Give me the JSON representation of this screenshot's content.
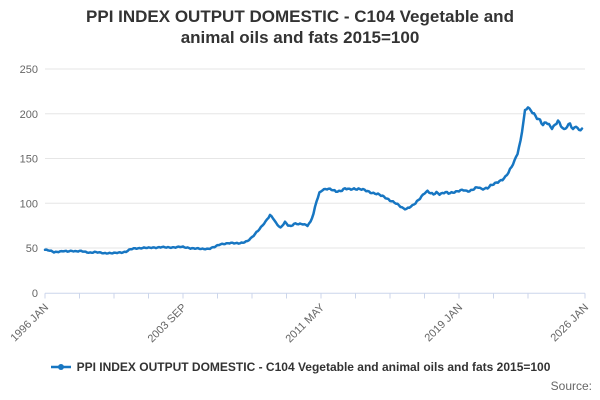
{
  "chart_data": {
    "type": "line",
    "title": "PPI INDEX OUTPUT DOMESTIC - C104 Vegetable and animal oils and fats 2015=100",
    "title_lines": [
      "PPI INDEX OUTPUT DOMESTIC - C104 Vegetable and",
      "animal oils and fats 2015=100"
    ],
    "grid": "horizontal-only",
    "legend_position": "bottom",
    "x_axis": {
      "start_month": "1996-01",
      "end_month": "2026-01",
      "total_months": 360,
      "minor_tick_interval_months": 23,
      "tick_labels": [
        "1996 JAN",
        "2003 SEP",
        "2011 MAY",
        "2019 JAN",
        "2026 JAN"
      ],
      "tick_label_month_offsets": [
        0,
        92,
        184,
        276,
        360
      ]
    },
    "y_axis": {
      "min": 0,
      "max": 250,
      "ticks": [
        0,
        50,
        100,
        150,
        200,
        250
      ]
    },
    "series": [
      {
        "name": "PPI INDEX OUTPUT DOMESTIC - C104 Vegetable and animal oils and fats 2015=100",
        "color": "#1776c2",
        "anchor_points_month_value": [
          [
            0,
            48
          ],
          [
            3,
            47
          ],
          [
            6,
            45.5
          ],
          [
            9,
            46
          ],
          [
            12,
            46.5
          ],
          [
            15,
            46
          ],
          [
            18,
            47
          ],
          [
            21,
            46.5
          ],
          [
            24,
            46.5
          ],
          [
            27,
            45.5
          ],
          [
            30,
            45
          ],
          [
            33,
            45.5
          ],
          [
            36,
            44.8
          ],
          [
            39,
            44.3
          ],
          [
            42,
            44.5
          ],
          [
            45,
            44.2
          ],
          [
            48,
            44.5
          ],
          [
            51,
            45.2
          ],
          [
            54,
            46
          ],
          [
            57,
            48.5
          ],
          [
            60,
            49.5
          ],
          [
            63,
            50
          ],
          [
            66,
            50.3
          ],
          [
            69,
            50
          ],
          [
            72,
            50.5
          ],
          [
            75,
            50.8
          ],
          [
            78,
            51
          ],
          [
            81,
            50.5
          ],
          [
            84,
            50.8
          ],
          [
            87,
            51
          ],
          [
            90,
            51.2
          ],
          [
            92,
            51
          ],
          [
            95,
            50.5
          ],
          [
            98,
            49.8
          ],
          [
            101,
            49.3
          ],
          [
            104,
            49
          ],
          [
            107,
            49.2
          ],
          [
            110,
            49.5
          ],
          [
            113,
            51
          ],
          [
            117,
            54.5
          ],
          [
            120,
            55
          ],
          [
            124,
            55.3
          ],
          [
            128,
            55.5
          ],
          [
            132,
            56
          ],
          [
            135,
            57.5
          ],
          [
            138,
            62
          ],
          [
            141,
            68
          ],
          [
            144,
            73
          ],
          [
            147,
            79
          ],
          [
            150,
            87
          ],
          [
            152,
            84
          ],
          [
            154,
            78
          ],
          [
            157,
            72
          ],
          [
            160,
            79
          ],
          [
            162,
            76
          ],
          [
            164,
            74.5
          ],
          [
            166,
            77
          ],
          [
            169,
            76.5
          ],
          [
            172,
            77
          ],
          [
            175,
            75.5
          ],
          [
            177,
            79
          ],
          [
            179,
            88
          ],
          [
            181,
            102
          ],
          [
            183,
            112
          ],
          [
            185,
            115.5
          ],
          [
            188,
            116
          ],
          [
            191,
            115
          ],
          [
            194,
            113.5
          ],
          [
            197,
            114
          ],
          [
            200,
            116
          ],
          [
            203,
            115.5
          ],
          [
            206,
            116.5
          ],
          [
            209,
            116
          ],
          [
            212,
            115
          ],
          [
            215,
            113.5
          ],
          [
            218,
            112
          ],
          [
            221,
            110.5
          ],
          [
            224,
            108.5
          ],
          [
            227,
            106.5
          ],
          [
            230,
            103.5
          ],
          [
            233,
            100.5
          ],
          [
            236,
            97.5
          ],
          [
            239,
            94.5
          ],
          [
            241,
            94
          ],
          [
            243,
            95.5
          ],
          [
            245,
            97
          ],
          [
            247,
            100
          ],
          [
            249,
            104
          ],
          [
            251,
            108
          ],
          [
            253,
            111.5
          ],
          [
            255,
            113
          ],
          [
            257,
            111
          ],
          [
            259,
            110
          ],
          [
            261,
            112.5
          ],
          [
            263,
            110.5
          ],
          [
            265,
            111
          ],
          [
            267,
            112
          ],
          [
            269,
            111
          ],
          [
            271,
            112
          ],
          [
            273,
            113
          ],
          [
            275,
            113.5
          ],
          [
            277,
            114
          ],
          [
            279,
            114.5
          ],
          [
            281,
            113.5
          ],
          [
            283,
            114
          ],
          [
            285,
            115.5
          ],
          [
            287,
            117
          ],
          [
            289,
            117.5
          ],
          [
            291,
            115.5
          ],
          [
            293,
            116.5
          ],
          [
            295,
            117.5
          ],
          [
            297,
            120
          ],
          [
            299,
            121
          ],
          [
            301,
            122.5
          ],
          [
            303,
            124.5
          ],
          [
            305,
            127
          ],
          [
            307,
            130
          ],
          [
            309,
            134.5
          ],
          [
            311,
            140
          ],
          [
            313,
            147
          ],
          [
            315,
            156
          ],
          [
            317,
            170
          ],
          [
            319,
            192
          ],
          [
            320,
            203
          ],
          [
            321,
            205
          ],
          [
            322,
            207
          ],
          [
            323,
            204
          ],
          [
            324,
            203
          ],
          [
            326,
            200
          ],
          [
            328,
            196
          ],
          [
            330,
            193
          ],
          [
            332,
            187
          ],
          [
            334,
            190
          ],
          [
            336,
            187.5
          ],
          [
            338,
            184.5
          ],
          [
            340,
            188
          ],
          [
            342,
            192
          ],
          [
            344,
            186
          ],
          [
            346,
            181.5
          ],
          [
            348,
            186
          ],
          [
            350,
            190
          ],
          [
            352,
            182.5
          ],
          [
            354,
            186
          ],
          [
            356,
            180.5
          ],
          [
            358,
            183.5
          ]
        ]
      }
    ]
  },
  "footer": {
    "source_label": "Source:"
  },
  "colors": {
    "line": "#1776c2",
    "title_text": "#333333",
    "axis_label": "#666666",
    "gridline": "#e6e6e6",
    "axis_line": "#ccd6eb",
    "background": "#ffffff"
  }
}
